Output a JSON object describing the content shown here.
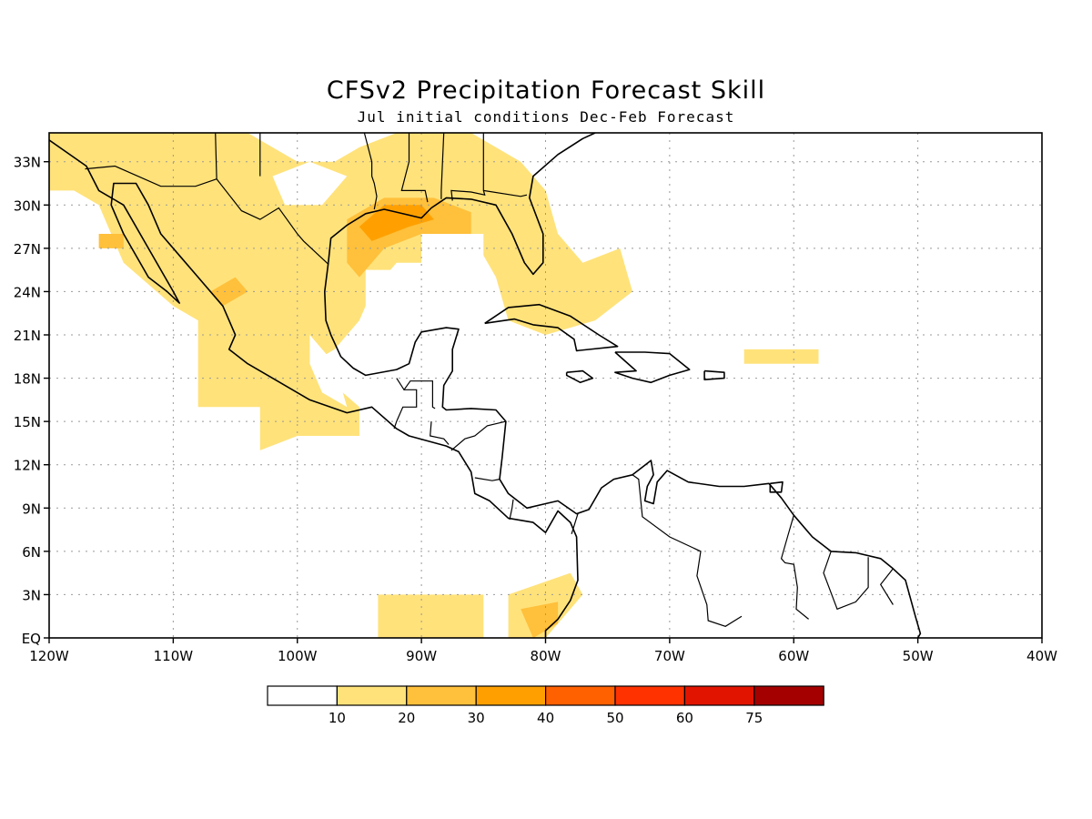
{
  "title": "CFSv2 Precipitation Forecast Skill",
  "subtitle": "Jul initial conditions   Dec-Feb Forecast",
  "map": {
    "lon_range": [
      -120,
      -40
    ],
    "lat_range": [
      0,
      35
    ],
    "grid": true
  },
  "axes": {
    "x_ticks": [
      {
        "lon": -120,
        "label": "120W"
      },
      {
        "lon": -110,
        "label": "110W"
      },
      {
        "lon": -100,
        "label": "100W"
      },
      {
        "lon": -90,
        "label": "90W"
      },
      {
        "lon": -80,
        "label": "80W"
      },
      {
        "lon": -70,
        "label": "70W"
      },
      {
        "lon": -60,
        "label": "60W"
      },
      {
        "lon": -50,
        "label": "50W"
      },
      {
        "lon": -40,
        "label": "40W"
      }
    ],
    "y_ticks": [
      {
        "lat": 0,
        "label": "EQ"
      },
      {
        "lat": 3,
        "label": "3N"
      },
      {
        "lat": 6,
        "label": "6N"
      },
      {
        "lat": 9,
        "label": "9N"
      },
      {
        "lat": 12,
        "label": "12N"
      },
      {
        "lat": 15,
        "label": "15N"
      },
      {
        "lat": 18,
        "label": "18N"
      },
      {
        "lat": 21,
        "label": "21N"
      },
      {
        "lat": 24,
        "label": "24N"
      },
      {
        "lat": 27,
        "label": "27N"
      },
      {
        "lat": 30,
        "label": "30N"
      },
      {
        "lat": 33,
        "label": "33N"
      }
    ]
  },
  "colorbar": {
    "colors": [
      "#ffffff",
      "#ffe27a",
      "#ffc03b",
      "#ffa000",
      "#ff6000",
      "#ff3200",
      "#e11400",
      "#a50000"
    ],
    "labels": [
      "10",
      "20",
      "30",
      "40",
      "50",
      "60",
      "75"
    ]
  },
  "skill_regions": [
    {
      "level": 1,
      "polygon": [
        [
          -120,
          35
        ],
        [
          -104,
          35
        ],
        [
          -100,
          33
        ],
        [
          -97,
          33
        ],
        [
          -95,
          34
        ],
        [
          -92,
          35
        ],
        [
          -86,
          35
        ],
        [
          -82,
          33
        ],
        [
          -80,
          31
        ],
        [
          -79,
          28
        ],
        [
          -77,
          26
        ],
        [
          -74,
          27
        ],
        [
          -73,
          24
        ],
        [
          -76,
          22
        ],
        [
          -80,
          21
        ],
        [
          -83,
          22
        ],
        [
          -84,
          25
        ],
        [
          -86,
          28
        ],
        [
          -87,
          26
        ],
        [
          -92,
          26
        ],
        [
          -94,
          24
        ],
        [
          -95,
          22
        ],
        [
          -97,
          20
        ],
        [
          -99,
          19
        ],
        [
          -95,
          16
        ],
        [
          -95,
          14
        ],
        [
          -100,
          14
        ],
        [
          -103,
          13
        ],
        [
          -103,
          16
        ],
        [
          -108,
          16
        ],
        [
          -108,
          22
        ],
        [
          -110,
          23
        ],
        [
          -114,
          26
        ],
        [
          -115,
          28
        ],
        [
          -116,
          30
        ],
        [
          -118,
          31
        ],
        [
          -120,
          31
        ]
      ]
    },
    {
      "level": 1,
      "polygon": [
        [
          -93.5,
          2
        ],
        [
          -93.5,
          3
        ],
        [
          -85,
          3
        ],
        [
          -85,
          0
        ],
        [
          -93.5,
          0
        ]
      ]
    },
    {
      "level": 1,
      "polygon": [
        [
          -83,
          3
        ],
        [
          -78,
          4.5
        ],
        [
          -77,
          3
        ],
        [
          -80,
          0
        ],
        [
          -83,
          0
        ]
      ]
    },
    {
      "level": 1,
      "polygon": [
        [
          -64,
          20
        ],
        [
          -58,
          20
        ],
        [
          -58,
          19
        ],
        [
          -64,
          19
        ]
      ]
    },
    {
      "level": 2,
      "polygon": [
        [
          -96,
          29
        ],
        [
          -93,
          30.5
        ],
        [
          -89,
          30.5
        ],
        [
          -86,
          29.5
        ],
        [
          -86,
          28
        ],
        [
          -90,
          28
        ],
        [
          -93,
          27
        ],
        [
          -95,
          25
        ],
        [
          -96,
          26
        ]
      ]
    },
    {
      "level": 2,
      "polygon": [
        [
          -107,
          24
        ],
        [
          -105,
          25
        ],
        [
          -104,
          24
        ],
        [
          -106,
          23
        ]
      ]
    },
    {
      "level": 2,
      "polygon": [
        [
          -116,
          28
        ],
        [
          -114,
          28
        ],
        [
          -114,
          27
        ],
        [
          -116,
          27
        ]
      ]
    },
    {
      "level": 2,
      "polygon": [
        [
          -82,
          2
        ],
        [
          -79,
          2.5
        ],
        [
          -79,
          1
        ],
        [
          -81,
          0
        ]
      ]
    },
    {
      "level": 3,
      "polygon": [
        [
          -95,
          28.5
        ],
        [
          -93,
          30
        ],
        [
          -90,
          30
        ],
        [
          -89,
          29
        ],
        [
          -91,
          28.5
        ],
        [
          -94,
          27.5
        ]
      ]
    }
  ],
  "blank_regions": [
    {
      "polygon": [
        [
          -94.5,
          25.5
        ],
        [
          -94.5,
          23
        ],
        [
          -86,
          23
        ],
        [
          -86,
          25.5
        ],
        [
          -85,
          25.5
        ],
        [
          -85,
          28
        ],
        [
          -90,
          28
        ],
        [
          -90,
          25.5
        ]
      ]
    },
    {
      "polygon": [
        [
          -102,
          32
        ],
        [
          -99,
          33
        ],
        [
          -96,
          32
        ],
        [
          -98,
          30
        ],
        [
          -101,
          30
        ]
      ]
    },
    {
      "polygon": [
        [
          -99,
          21
        ],
        [
          -97,
          19
        ],
        [
          -96,
          16
        ],
        [
          -98,
          17
        ],
        [
          -99,
          19
        ]
      ]
    }
  ],
  "coastlines": [
    [
      [
        -120,
        34.5
      ],
      [
        -117,
        32.7
      ],
      [
        -116,
        31
      ],
      [
        -114,
        30
      ],
      [
        -112,
        27
      ],
      [
        -110,
        24
      ],
      [
        -109.5,
        23.2
      ],
      [
        -110.5,
        24
      ],
      [
        -112,
        25
      ],
      [
        -114,
        28
      ],
      [
        -115,
        30
      ],
      [
        -114.8,
        31.5
      ],
      [
        -113,
        31.5
      ],
      [
        -112,
        30
      ],
      [
        -111,
        28
      ],
      [
        -109.5,
        26.5
      ],
      [
        -108,
        25
      ],
      [
        -106,
        23
      ],
      [
        -105,
        21
      ],
      [
        -105.5,
        20
      ],
      [
        -104,
        19
      ],
      [
        -102,
        18
      ],
      [
        -99,
        16.5
      ],
      [
        -96,
        15.6
      ],
      [
        -94,
        16
      ],
      [
        -92,
        14.5
      ],
      [
        -91,
        14
      ],
      [
        -88,
        13.3
      ],
      [
        -87,
        12.9
      ],
      [
        -86,
        11.5
      ],
      [
        -85.7,
        10
      ],
      [
        -84.5,
        9.5
      ],
      [
        -83,
        8.3
      ],
      [
        -81,
        8
      ],
      [
        -80,
        7.3
      ],
      [
        -79,
        8.8
      ],
      [
        -78,
        8
      ],
      [
        -77.5,
        7
      ],
      [
        -77.4,
        4
      ],
      [
        -78,
        2.6
      ],
      [
        -79,
        1.3
      ],
      [
        -80,
        0.5
      ],
      [
        -80,
        0
      ]
    ],
    [
      [
        -97.5,
        26
      ],
      [
        -97.3,
        27.7
      ],
      [
        -96,
        28.6
      ],
      [
        -94.5,
        29.4
      ],
      [
        -93,
        29.7
      ],
      [
        -91,
        29.3
      ],
      [
        -90,
        29.1
      ],
      [
        -89.2,
        29.8
      ],
      [
        -88,
        30.5
      ],
      [
        -86,
        30.4
      ],
      [
        -84,
        30
      ],
      [
        -82.7,
        28
      ],
      [
        -81.7,
        26
      ],
      [
        -81,
        25.2
      ],
      [
        -80.2,
        26
      ],
      [
        -80.2,
        28
      ],
      [
        -81.3,
        30.5
      ],
      [
        -81,
        32
      ],
      [
        -79,
        33.5
      ],
      [
        -77,
        34.6
      ],
      [
        -76,
        35
      ]
    ],
    [
      [
        -97.5,
        26
      ],
      [
        -97.8,
        24
      ],
      [
        -97.7,
        22
      ],
      [
        -97.3,
        21
      ],
      [
        -96.5,
        19.5
      ],
      [
        -95.5,
        18.7
      ],
      [
        -94.5,
        18.2
      ],
      [
        -92,
        18.6
      ],
      [
        -91,
        19
      ],
      [
        -90.5,
        20.5
      ],
      [
        -90,
        21.2
      ],
      [
        -88,
        21.5
      ],
      [
        -87,
        21.4
      ],
      [
        -87.5,
        20
      ],
      [
        -87.5,
        18.5
      ],
      [
        -88.2,
        17.5
      ],
      [
        -88.3,
        16
      ],
      [
        -88,
        15.8
      ],
      [
        -86,
        15.9
      ],
      [
        -84,
        15.8
      ],
      [
        -83.2,
        15
      ],
      [
        -83.5,
        12.5
      ],
      [
        -83.7,
        11
      ],
      [
        -83,
        10
      ],
      [
        -81.5,
        9
      ],
      [
        -80,
        9.3
      ],
      [
        -79,
        9.5
      ],
      [
        -77.5,
        8.6
      ],
      [
        -76.5,
        8.9
      ],
      [
        -75.5,
        10.4
      ],
      [
        -74.5,
        11
      ],
      [
        -73,
        11.3
      ],
      [
        -71.5,
        12.3
      ],
      [
        -71.3,
        11.3
      ],
      [
        -71.8,
        10.5
      ],
      [
        -72,
        9.5
      ],
      [
        -71.3,
        9.3
      ],
      [
        -71,
        10.8
      ],
      [
        -70.2,
        11.6
      ],
      [
        -68.5,
        10.8
      ],
      [
        -66,
        10.5
      ],
      [
        -64,
        10.5
      ],
      [
        -62,
        10.7
      ],
      [
        -61,
        9.7
      ],
      [
        -60,
        8.5
      ],
      [
        -58.5,
        7
      ],
      [
        -57,
        6
      ],
      [
        -55,
        5.9
      ],
      [
        -53,
        5.5
      ],
      [
        -52,
        4.8
      ],
      [
        -51,
        4
      ],
      [
        -50.2,
        1.5
      ],
      [
        -49.8,
        0.3
      ],
      [
        -50,
        0
      ]
    ],
    [
      [
        -84.9,
        21.8
      ],
      [
        -83,
        22.9
      ],
      [
        -80.5,
        23.1
      ],
      [
        -78,
        22.3
      ],
      [
        -75.7,
        21
      ],
      [
        -74.2,
        20.2
      ],
      [
        -77.5,
        19.9
      ],
      [
        -77.7,
        20.7
      ],
      [
        -79,
        21.5
      ],
      [
        -81,
        21.7
      ],
      [
        -82.5,
        22.1
      ],
      [
        -84.9,
        21.8
      ]
    ],
    [
      [
        -74.4,
        19.8
      ],
      [
        -72,
        19.8
      ],
      [
        -70,
        19.7
      ],
      [
        -68.4,
        18.6
      ],
      [
        -70,
        18.2
      ],
      [
        -71.5,
        17.7
      ],
      [
        -73,
        18
      ],
      [
        -74.4,
        18.4
      ],
      [
        -72.7,
        18.5
      ],
      [
        -74.4,
        19.8
      ]
    ],
    [
      [
        -78.3,
        18.4
      ],
      [
        -77,
        18.5
      ],
      [
        -76.2,
        18
      ],
      [
        -77.2,
        17.7
      ],
      [
        -78.3,
        18.2
      ],
      [
        -78.3,
        18.4
      ]
    ],
    [
      [
        -67.2,
        18.5
      ],
      [
        -65.6,
        18.4
      ],
      [
        -65.6,
        18
      ],
      [
        -67.2,
        17.9
      ],
      [
        -67.2,
        18.5
      ]
    ],
    [
      [
        -61.9,
        10.7
      ],
      [
        -60.9,
        10.8
      ],
      [
        -61,
        10.1
      ],
      [
        -61.9,
        10.1
      ],
      [
        -61.9,
        10.7
      ]
    ]
  ],
  "borders": [
    [
      [
        -117.1,
        32.5
      ],
      [
        -114.7,
        32.7
      ],
      [
        -111,
        31.3
      ],
      [
        -108.2,
        31.3
      ],
      [
        -106.5,
        31.8
      ],
      [
        -104.5,
        29.6
      ],
      [
        -103,
        29
      ],
      [
        -101.5,
        29.8
      ],
      [
        -100,
        28
      ],
      [
        -99.5,
        27.5
      ],
      [
        -97.5,
        25.9
      ]
    ],
    [
      [
        -92,
        18
      ],
      [
        -91.4,
        17.2
      ],
      [
        -90.9,
        17.8
      ],
      [
        -89.1,
        17.8
      ],
      [
        -89.1,
        16
      ],
      [
        -88.9,
        15.9
      ]
    ],
    [
      [
        -92.2,
        14.5
      ],
      [
        -92,
        15
      ],
      [
        -91.5,
        16
      ],
      [
        -90.4,
        16
      ],
      [
        -90.4,
        17.2
      ],
      [
        -91.4,
        17.2
      ]
    ],
    [
      [
        -89.2,
        15
      ],
      [
        -89.3,
        14
      ],
      [
        -88.2,
        13.8
      ],
      [
        -87.8,
        13.4
      ]
    ],
    [
      [
        -87.6,
        13
      ],
      [
        -86.5,
        13.8
      ],
      [
        -85.7,
        14
      ],
      [
        -84.7,
        14.7
      ],
      [
        -83.2,
        15
      ]
    ],
    [
      [
        -85.7,
        11.1
      ],
      [
        -84.3,
        10.9
      ],
      [
        -83.7,
        11
      ]
    ],
    [
      [
        -82.9,
        8.2
      ],
      [
        -82.7,
        9
      ],
      [
        -82.6,
        9.6
      ]
    ],
    [
      [
        -77.4,
        8.6
      ],
      [
        -77.9,
        7.2
      ]
    ],
    [
      [
        -73,
        11.3
      ],
      [
        -72.5,
        11
      ],
      [
        -72.2,
        8.4
      ],
      [
        -70,
        7
      ],
      [
        -67.5,
        6
      ],
      [
        -67.8,
        4.3
      ],
      [
        -67,
        2.3
      ],
      [
        -66.9,
        1.2
      ],
      [
        -65.5,
        0.8
      ],
      [
        -64.2,
        1.5
      ]
    ],
    [
      [
        -60,
        8.5
      ],
      [
        -60.5,
        7
      ],
      [
        -61,
        5.5
      ],
      [
        -60.7,
        5.2
      ],
      [
        -60,
        5.1
      ],
      [
        -59.7,
        3.5
      ],
      [
        -59.8,
        2
      ],
      [
        -58.8,
        1.3
      ]
    ],
    [
      [
        -57,
        6
      ],
      [
        -57.6,
        4.5
      ],
      [
        -56.5,
        2
      ],
      [
        -55,
        2.5
      ],
      [
        -54,
        3.5
      ],
      [
        -54,
        5.6
      ]
    ],
    [
      [
        -52,
        4.8
      ],
      [
        -53,
        3.7
      ],
      [
        -52,
        2.3
      ]
    ],
    [
      [
        -106.5,
        31.8
      ],
      [
        -106.6,
        35
      ]
    ],
    [
      [
        -103,
        36
      ],
      [
        -103,
        32
      ]
    ],
    [
      [
        -94.6,
        35
      ],
      [
        -94,
        33
      ],
      [
        -94,
        32
      ],
      [
        -93.8,
        31.5
      ],
      [
        -93.6,
        30.6
      ],
      [
        -93.8,
        29.7
      ]
    ],
    [
      [
        -91,
        35
      ],
      [
        -91,
        33
      ],
      [
        -91.6,
        31
      ],
      [
        -89.7,
        31
      ],
      [
        -89.5,
        30.2
      ]
    ],
    [
      [
        -88.2,
        35
      ],
      [
        -88.4,
        31
      ],
      [
        -88.4,
        30.4
      ]
    ],
    [
      [
        -85,
        35
      ],
      [
        -85,
        31
      ],
      [
        -84.9,
        30.7
      ],
      [
        -86,
        30.9
      ],
      [
        -87.6,
        31
      ],
      [
        -87.5,
        30.3
      ]
    ],
    [
      [
        -85,
        31
      ],
      [
        -82,
        30.6
      ],
      [
        -81.5,
        30.7
      ]
    ]
  ]
}
